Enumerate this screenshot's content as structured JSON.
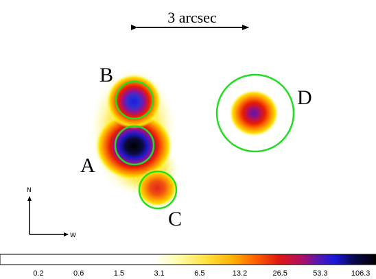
{
  "scale_bar": {
    "label": "3 arcsec"
  },
  "compass": {
    "north_label": "N",
    "west_label": "W"
  },
  "sources": [
    {
      "id": "A",
      "label": "A",
      "peak": 106.3
    },
    {
      "id": "B",
      "label": "B",
      "peak": 53.3
    },
    {
      "id": "C",
      "label": "C",
      "peak": 13.2
    },
    {
      "id": "D",
      "label": "D",
      "peak": 26.5
    }
  ],
  "colorbar": {
    "ticks": [
      "0.2",
      "0.6",
      "1.5",
      "3.1",
      "6.5",
      "13.2",
      "26.5",
      "53.3",
      "106.3"
    ],
    "colors": [
      "#ffffff",
      "#ffffff",
      "#ffffff",
      "#ffff90",
      "#ffc800",
      "#e81c00",
      "#c80040",
      "#2018c8",
      "#000000"
    ]
  },
  "colors": {
    "marker_circle": "#22dd22",
    "background": "#ffffff"
  }
}
